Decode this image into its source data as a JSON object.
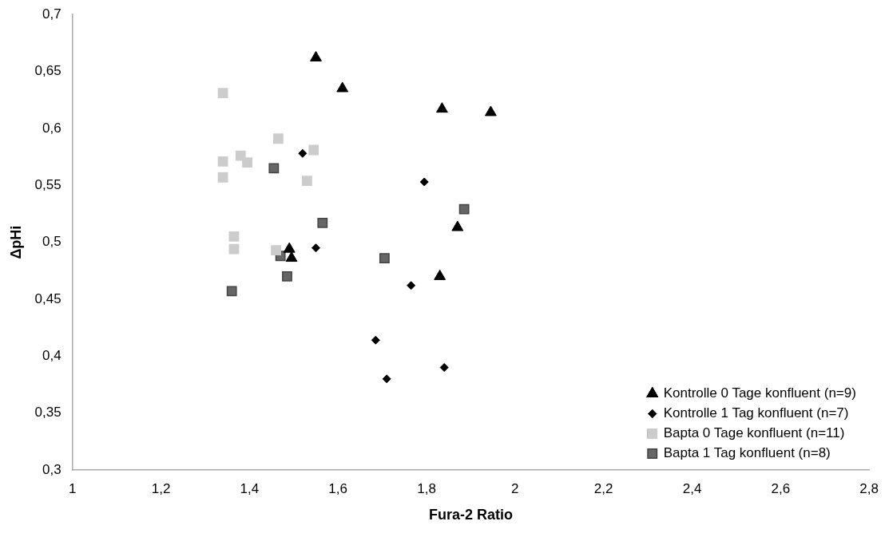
{
  "chart_data": {
    "type": "scatter",
    "xlabel": "Fura-2 Ratio",
    "ylabel": "ΔpHi",
    "xlim": [
      1,
      2.8
    ],
    "ylim": [
      0.3,
      0.7
    ],
    "xticks": [
      1,
      {
        "value": 1.2,
        "label": "1,2"
      },
      {
        "value": 1.4,
        "label": "1,4"
      },
      {
        "value": 1.6,
        "label": "1,6"
      },
      {
        "value": 1.8,
        "label": "1,8"
      },
      2,
      {
        "value": 2.2,
        "label": "2,2"
      },
      {
        "value": 2.4,
        "label": "2,4"
      },
      {
        "value": 2.6,
        "label": "2,6"
      },
      {
        "value": 2.8,
        "label": "2,8"
      }
    ],
    "yticks": [
      {
        "value": 0.3,
        "label": "0,3"
      },
      {
        "value": 0.35,
        "label": "0,35"
      },
      {
        "value": 0.4,
        "label": "0,4"
      },
      {
        "value": 0.45,
        "label": "0,45"
      },
      {
        "value": 0.5,
        "label": "0,5"
      },
      {
        "value": 0.55,
        "label": "0,55"
      },
      {
        "value": 0.6,
        "label": "0,6"
      },
      {
        "value": 0.65,
        "label": "0,65"
      },
      {
        "value": 0.7,
        "label": "0,7"
      }
    ],
    "grid": false,
    "legend": "bottom right",
    "series": [
      {
        "name": "Kontrolle 0 Tage konfluent (n=9)",
        "color": "#000000",
        "marker": "triangle",
        "x": [
          1.55,
          1.61,
          1.835,
          1.945,
          1.87,
          1.83,
          1.49,
          1.495
        ],
        "values": [
          0.662,
          0.635,
          0.617,
          0.614,
          0.513,
          0.47,
          0.494,
          0.486
        ]
      },
      {
        "name": "Kontrolle 1 Tag konfluent (n=7)",
        "color": "#000000",
        "marker": "diamond",
        "x": [
          1.52,
          1.795,
          1.55,
          1.765,
          1.685,
          1.84,
          1.71
        ],
        "values": [
          0.578,
          0.553,
          0.495,
          0.462,
          0.414,
          0.39,
          0.38
        ]
      },
      {
        "name": "Bapta 0 Tage konfluent (n=11)",
        "color": "#cccccc",
        "marker": "square",
        "x": [
          1.34,
          1.34,
          1.34,
          1.465,
          1.38,
          1.395,
          1.545,
          1.53,
          1.365,
          1.365,
          1.46
        ],
        "values": [
          0.631,
          0.571,
          0.557,
          0.591,
          0.576,
          0.57,
          0.581,
          0.554,
          0.505,
          0.494,
          0.493
        ]
      },
      {
        "name": "Bapta 1 Tag konfluent (n=8)",
        "color": "#666666",
        "marker": "square",
        "x": [
          1.455,
          1.565,
          1.885,
          1.705,
          1.47,
          1.485,
          1.36
        ],
        "values": [
          0.565,
          0.517,
          0.529,
          0.486,
          0.488,
          0.47,
          0.457
        ]
      }
    ]
  }
}
